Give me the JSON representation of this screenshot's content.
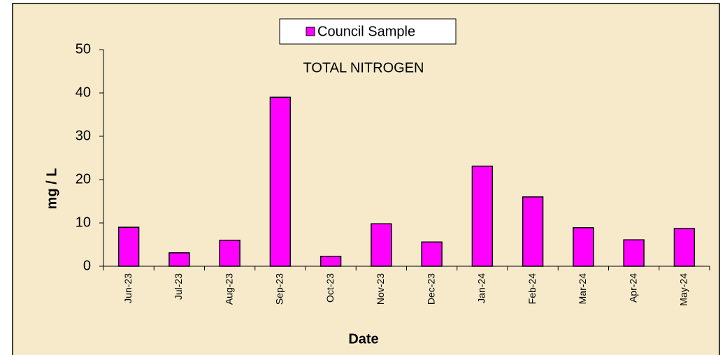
{
  "chart_data": {
    "type": "bar",
    "title": "TOTAL NITROGEN",
    "x_label": "Date",
    "y_label": "mg / L",
    "categories": [
      "Jun-23",
      "Jul-23",
      "Aug-23",
      "Sep-23",
      "Oct-23",
      "Nov-23",
      "Dec-23",
      "Jan-24",
      "Feb-24",
      "Mar-24",
      "Apr-24",
      "May-24"
    ],
    "series": [
      {
        "name": "Council Sample",
        "color": "#ff00ff",
        "values": [
          9.0,
          3.1,
          6.0,
          39.0,
          2.3,
          9.8,
          5.6,
          23.1,
          16.0,
          8.9,
          6.1,
          8.7
        ]
      }
    ],
    "ylim": [
      0,
      50
    ],
    "yticks": [
      0,
      10,
      20,
      30,
      40,
      50
    ],
    "grid": false,
    "legend": "top"
  }
}
